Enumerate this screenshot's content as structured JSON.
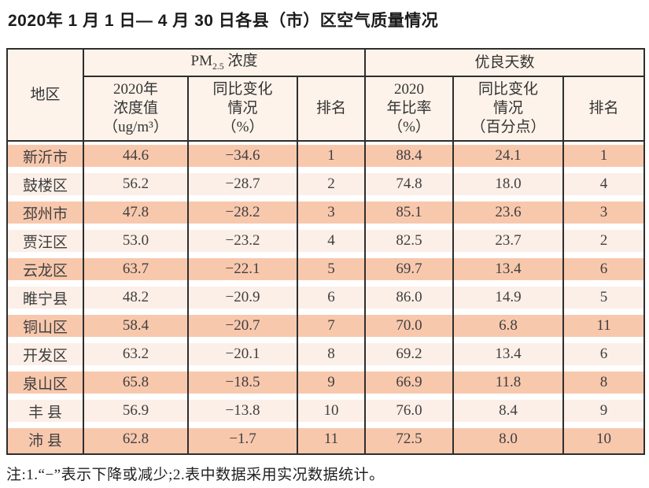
{
  "title": "2020年 1 月 1 日— 4 月 30 日各县（市）区空气质量情况",
  "table": {
    "region_header": "地区",
    "pm25_group": {
      "prefix": "PM",
      "sub": "2.5",
      "suffix": " 浓度"
    },
    "good_days_group": "优良天数",
    "sub_headers": {
      "pm25_value": "2020年\n浓度值\n（ug/m³）",
      "pm25_change": "同比变化\n情况\n（%）",
      "pm25_rank": "排名",
      "good_rate": "2020\n年比率\n（%）",
      "good_change": "同比变化\n情况\n（百分点）",
      "good_rank": "排名"
    },
    "rows": [
      {
        "region": "新沂市",
        "pm25_value": "44.6",
        "pm25_change": "−34.6",
        "pm25_rank": "1",
        "good_rate": "88.4",
        "good_change": "24.1",
        "good_rank": "1"
      },
      {
        "region": "鼓楼区",
        "pm25_value": "56.2",
        "pm25_change": "−28.7",
        "pm25_rank": "2",
        "good_rate": "74.8",
        "good_change": "18.0",
        "good_rank": "4"
      },
      {
        "region": "邳州市",
        "pm25_value": "47.8",
        "pm25_change": "−28.2",
        "pm25_rank": "3",
        "good_rate": "85.1",
        "good_change": "23.6",
        "good_rank": "3"
      },
      {
        "region": "贾汪区",
        "pm25_value": "53.0",
        "pm25_change": "−23.2",
        "pm25_rank": "4",
        "good_rate": "82.5",
        "good_change": "23.7",
        "good_rank": "2"
      },
      {
        "region": "云龙区",
        "pm25_value": "63.7",
        "pm25_change": "−22.1",
        "pm25_rank": "5",
        "good_rate": "69.7",
        "good_change": "13.4",
        "good_rank": "6"
      },
      {
        "region": "睢宁县",
        "pm25_value": "48.2",
        "pm25_change": "−20.9",
        "pm25_rank": "6",
        "good_rate": "86.0",
        "good_change": "14.9",
        "good_rank": "5"
      },
      {
        "region": "铜山区",
        "pm25_value": "58.4",
        "pm25_change": "−20.7",
        "pm25_rank": "7",
        "good_rate": "70.0",
        "good_change": "6.8",
        "good_rank": "11"
      },
      {
        "region": "开发区",
        "pm25_value": "63.2",
        "pm25_change": "−20.1",
        "pm25_rank": "8",
        "good_rate": "69.2",
        "good_change": "13.4",
        "good_rank": "6"
      },
      {
        "region": "泉山区",
        "pm25_value": "65.8",
        "pm25_change": "−18.5",
        "pm25_rank": "9",
        "good_rate": "66.9",
        "good_change": "11.8",
        "good_rank": "8"
      },
      {
        "region": "丰 县",
        "pm25_value": "56.9",
        "pm25_change": "−13.8",
        "pm25_rank": "10",
        "good_rate": "76.0",
        "good_change": "8.4",
        "good_rank": "9"
      },
      {
        "region": "沛 县",
        "pm25_value": "62.8",
        "pm25_change": "−1.7",
        "pm25_rank": "11",
        "good_rate": "72.5",
        "good_change": "8.0",
        "good_rank": "10"
      }
    ]
  },
  "footnote": "注:1.“−”表示下降或减少;2.表中数据采用实况数据统计。",
  "colors": {
    "row_dark": "#f8c8ad",
    "row_light": "#fcefe7",
    "header_bg": "#fdf3ea",
    "border": "#2e2e2e"
  }
}
